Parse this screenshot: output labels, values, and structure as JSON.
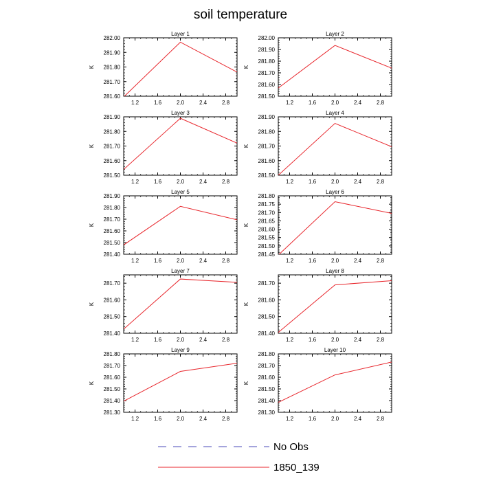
{
  "chart_data": {
    "type": "line",
    "title": "soil temperature",
    "x": [
      1,
      2,
      3
    ],
    "xlim": [
      1,
      3
    ],
    "xticks": [
      1.2,
      1.6,
      2.0,
      2.4,
      2.8
    ],
    "xtick_labels": [
      "1.2",
      "1.6",
      "2.0",
      "2.4",
      "2.8"
    ],
    "ylabel": "K",
    "legend": [
      {
        "name": "No Obs",
        "color": "#4a4ab8",
        "style": "dashed"
      },
      {
        "name": "1850_139",
        "color": "#e8262c",
        "style": "solid"
      }
    ],
    "panels": [
      {
        "title": "Layer 1",
        "ylim": [
          281.6,
          282.0
        ],
        "yticks": [
          281.6,
          281.7,
          281.8,
          281.9,
          282.0
        ],
        "ytick_labels": [
          "281.60",
          "281.70",
          "281.80",
          "281.90",
          "282.00"
        ],
        "series": [
          {
            "name": "1850_139",
            "values": [
              281.595,
              281.97,
              281.765
            ]
          }
        ]
      },
      {
        "title": "Layer 2",
        "ylim": [
          281.5,
          282.0
        ],
        "yticks": [
          281.5,
          281.6,
          281.7,
          281.8,
          281.9,
          282.0
        ],
        "ytick_labels": [
          "281.50",
          "281.60",
          "281.70",
          "281.80",
          "281.90",
          "282.00"
        ],
        "series": [
          {
            "name": "1850_139",
            "values": [
              281.57,
              281.935,
              281.74
            ]
          }
        ]
      },
      {
        "title": "Layer 3",
        "ylim": [
          281.5,
          281.9
        ],
        "yticks": [
          281.5,
          281.6,
          281.7,
          281.8,
          281.9
        ],
        "ytick_labels": [
          "281.50",
          "281.60",
          "281.70",
          "281.80",
          "281.90"
        ],
        "series": [
          {
            "name": "1850_139",
            "values": [
              281.54,
              281.89,
              281.72
            ]
          }
        ]
      },
      {
        "title": "Layer 4",
        "ylim": [
          281.5,
          281.9
        ],
        "yticks": [
          281.5,
          281.6,
          281.7,
          281.8,
          281.9
        ],
        "ytick_labels": [
          "281.50",
          "281.60",
          "281.70",
          "281.80",
          "281.90"
        ],
        "series": [
          {
            "name": "1850_139",
            "values": [
              281.5,
              281.855,
              281.695
            ]
          }
        ]
      },
      {
        "title": "Layer 5",
        "ylim": [
          281.4,
          281.9
        ],
        "yticks": [
          281.4,
          281.5,
          281.6,
          281.7,
          281.8,
          281.9
        ],
        "ytick_labels": [
          "281.40",
          "281.50",
          "281.60",
          "281.70",
          "281.80",
          "281.90"
        ],
        "series": [
          {
            "name": "1850_139",
            "values": [
              281.48,
              281.81,
              281.695
            ]
          }
        ]
      },
      {
        "title": "Layer 6",
        "ylim": [
          281.45,
          281.8
        ],
        "yticks": [
          281.45,
          281.5,
          281.55,
          281.6,
          281.65,
          281.7,
          281.75,
          281.8
        ],
        "ytick_labels": [
          "281.45",
          "281.50",
          "281.55",
          "281.60",
          "281.65",
          "281.70",
          "281.75",
          "281.80"
        ],
        "series": [
          {
            "name": "1850_139",
            "values": [
              281.445,
              281.765,
              281.695
            ]
          }
        ]
      },
      {
        "title": "Layer 7",
        "ylim": [
          281.4,
          281.75
        ],
        "yticks": [
          281.4,
          281.5,
          281.6,
          281.7
        ],
        "ytick_labels": [
          "281.40",
          "281.50",
          "281.60",
          "281.70"
        ],
        "series": [
          {
            "name": "1850_139",
            "values": [
              281.425,
              281.725,
              281.705
            ]
          }
        ]
      },
      {
        "title": "Layer 8",
        "ylim": [
          281.4,
          281.75
        ],
        "yticks": [
          281.4,
          281.5,
          281.6,
          281.7
        ],
        "ytick_labels": [
          "281.40",
          "281.50",
          "281.60",
          "281.70"
        ],
        "series": [
          {
            "name": "1850_139",
            "values": [
              281.405,
              281.69,
              281.715
            ]
          }
        ]
      },
      {
        "title": "Layer 9",
        "ylim": [
          281.3,
          281.8
        ],
        "yticks": [
          281.3,
          281.4,
          281.5,
          281.6,
          281.7,
          281.8
        ],
        "ytick_labels": [
          "281.30",
          "281.40",
          "281.50",
          "281.60",
          "281.70",
          "281.80"
        ],
        "series": [
          {
            "name": "1850_139",
            "values": [
              281.395,
              281.65,
              281.72
            ]
          }
        ]
      },
      {
        "title": "Layer 10",
        "ylim": [
          281.3,
          281.8
        ],
        "yticks": [
          281.3,
          281.4,
          281.5,
          281.6,
          281.7,
          281.8
        ],
        "ytick_labels": [
          "281.30",
          "281.40",
          "281.50",
          "281.60",
          "281.70",
          "281.80"
        ],
        "series": [
          {
            "name": "1850_139",
            "values": [
              281.385,
              281.62,
              281.73
            ]
          }
        ]
      }
    ]
  }
}
